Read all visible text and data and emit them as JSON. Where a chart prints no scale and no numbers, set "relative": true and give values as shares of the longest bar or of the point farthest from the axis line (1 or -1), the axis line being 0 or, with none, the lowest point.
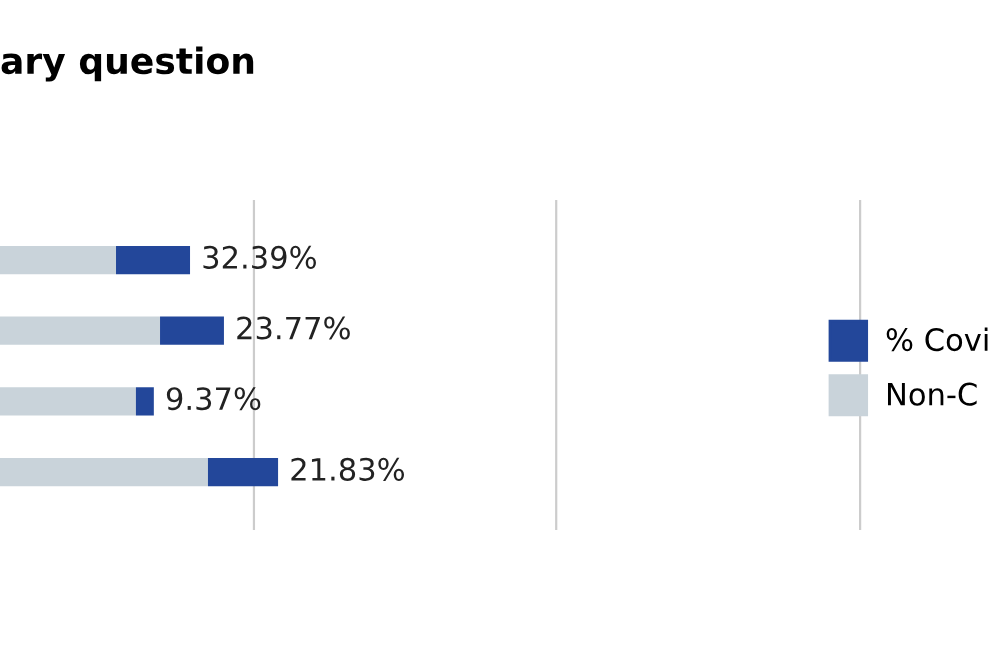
{
  "chart_data": {
    "type": "bar",
    "orientation": "horizontal",
    "stacked": true,
    "relative": true,
    "title": "ary question",
    "categories": [
      null,
      null,
      null,
      null
    ],
    "series": [
      {
        "name": "Non-C",
        "color": "#c9d3da",
        "values": [
          0.503,
          0.638,
          0.564,
          0.785
        ]
      },
      {
        "name": "% Covi",
        "color": "#23479a",
        "values": [
          0.227,
          0.196,
          0.055,
          0.215
        ]
      }
    ],
    "annotations": [
      "32.39%",
      "23.77%",
      "9.37%",
      "21.83%"
    ],
    "ref_lines": [
      {
        "axis": "x",
        "value": 0.926,
        "color": "#cccccc"
      },
      {
        "axis": "x",
        "value": 1.853,
        "color": "#cccccc"
      },
      {
        "axis": "x",
        "value": 2.785,
        "color": "#cccccc"
      }
    ],
    "legend": "right"
  }
}
